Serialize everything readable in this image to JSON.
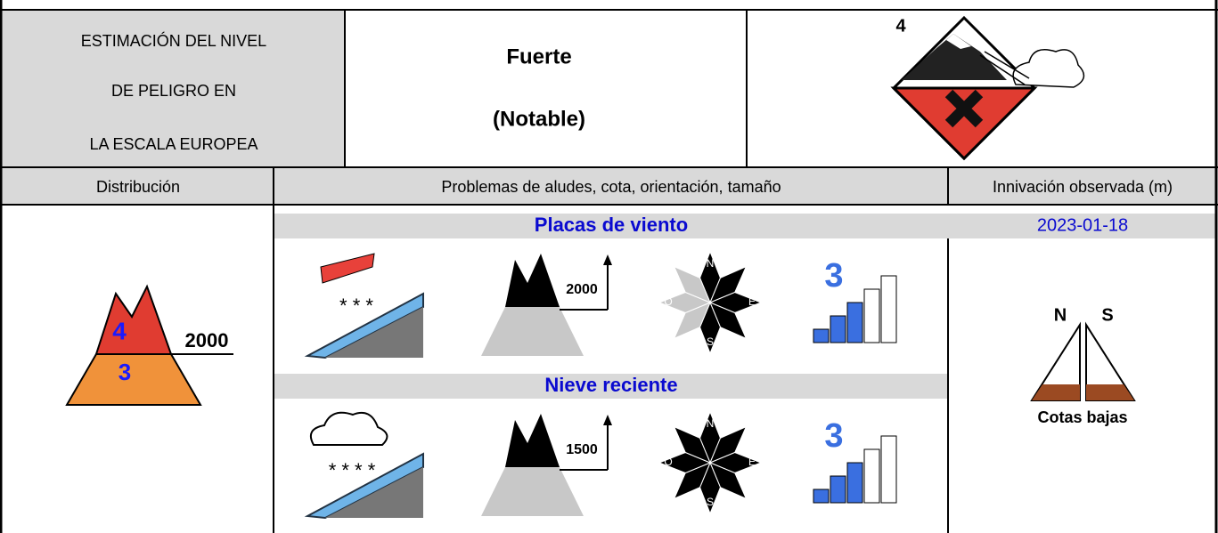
{
  "header": {
    "estimation": [
      "ESTIMACIÓN DEL NIVEL",
      "DE PELIGRO EN",
      "LA ESCALA EUROPEA"
    ],
    "level": [
      "Fuerte",
      "(Notable)"
    ],
    "icon_level": "4"
  },
  "table": {
    "columns": [
      "Distribución",
      "Problemas de aludes, cota, orientación, tamaño",
      "Innivación observada (m)"
    ],
    "distribution": {
      "upper_level": "4",
      "lower_level": "3",
      "altitude": "2000"
    },
    "problems": [
      {
        "name": "Placas de viento",
        "altitude": "2000",
        "aspects": [
          "N",
          "E",
          "S",
          "O"
        ],
        "size": 3
      },
      {
        "name": "Nieve reciente",
        "altitude": "1500",
        "aspects": [
          "N",
          "E",
          "S",
          "O"
        ],
        "size": 3
      }
    ],
    "snow_cover": {
      "date": "2023-01-18",
      "aspects": [
        "N",
        "S"
      ],
      "caption": "Cotas bajas"
    }
  }
}
